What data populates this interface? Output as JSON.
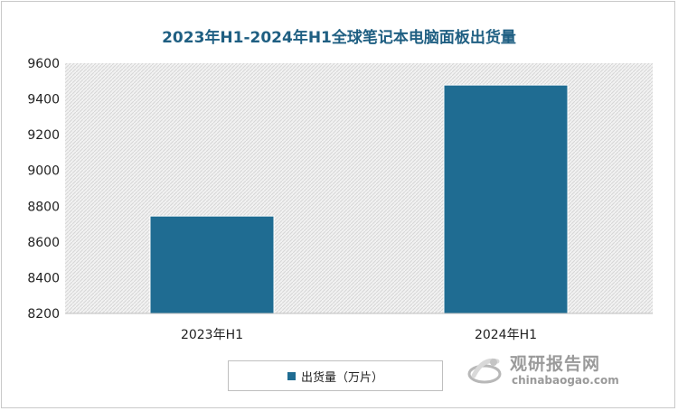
{
  "chart_data": {
    "type": "bar",
    "title": "2023年H1-2024年H1全球笔记本电脑面板出货量",
    "categories": [
      "2023年H1",
      "2024年H1"
    ],
    "series": [
      {
        "name": "出货量（万片）",
        "values": [
          8745,
          9478
        ]
      }
    ],
    "ylim": [
      8200,
      9600
    ],
    "yticks": [
      8200,
      8400,
      8600,
      8800,
      9000,
      9200,
      9400,
      9600
    ],
    "xlabel": "",
    "ylabel": "",
    "legend_position": "bottom",
    "grid": false,
    "bar_color": "#1f6c92",
    "plot_background": "hatched-gray"
  },
  "legend": {
    "label": "出货量（万片）"
  },
  "watermark": {
    "name": "观研报告网",
    "url": "chinabaogao.com"
  }
}
